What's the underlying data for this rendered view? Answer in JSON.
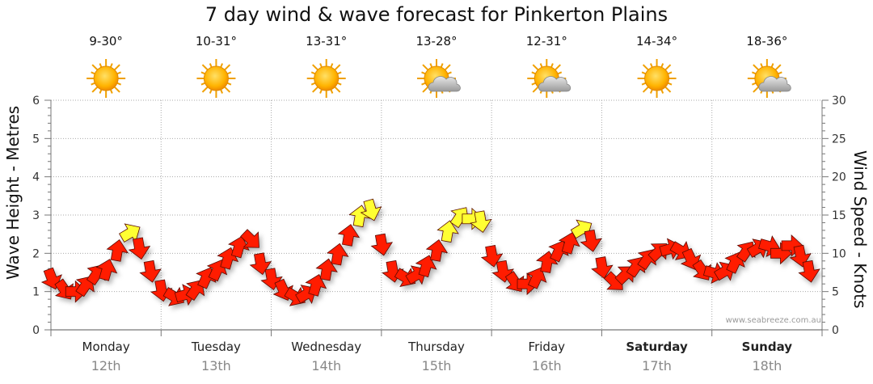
{
  "chart_data": {
    "type": "line",
    "title": "7 day wind & wave forecast for Pinkerton Plains",
    "ylabel": "Wave Height - Metres",
    "y2label": "Wind Speed - Knots",
    "ylim": [
      0,
      6
    ],
    "y2lim": [
      0,
      30
    ],
    "y_ticks": [
      "0",
      "1",
      "2",
      "3",
      "4",
      "5",
      "6"
    ],
    "y2_ticks": [
      "0",
      "5",
      "10",
      "15",
      "20",
      "25",
      "30"
    ],
    "days": [
      {
        "name": "Monday",
        "date": "12th",
        "temp": "9-30°",
        "icon": "sun-icon",
        "bold": false
      },
      {
        "name": "Tuesday",
        "date": "13th",
        "temp": "10-31°",
        "icon": "sun-icon",
        "bold": false
      },
      {
        "name": "Wednesday",
        "date": "14th",
        "temp": "13-31°",
        "icon": "sun-icon",
        "bold": false
      },
      {
        "name": "Thursday",
        "date": "15th",
        "temp": "13-28°",
        "icon": "sun-cloud-icon",
        "bold": false
      },
      {
        "name": "Friday",
        "date": "16th",
        "temp": "12-31°",
        "icon": "sun-cloud-icon",
        "bold": false
      },
      {
        "name": "Saturday",
        "date": "17th",
        "temp": "14-34°",
        "icon": "sun-icon",
        "bold": true
      },
      {
        "name": "Sunday",
        "date": "18th",
        "temp": "18-36°",
        "icon": "sun-cloud-icon",
        "bold": true
      }
    ],
    "wind_x_days": [
      0.0,
      0.11,
      0.2,
      0.3,
      0.4,
      0.5,
      0.6,
      0.7,
      0.8,
      0.9,
      1.0,
      1.1,
      1.2,
      1.3,
      1.4,
      1.5,
      1.6,
      1.7,
      1.8,
      1.9,
      2.0,
      2.1,
      2.2,
      2.3,
      2.4,
      2.5,
      2.6,
      2.7,
      2.8,
      2.9,
      3.0,
      3.1,
      3.2,
      3.3,
      3.4,
      3.5,
      3.6,
      3.7,
      3.8,
      3.9,
      4.0,
      4.1,
      4.2,
      4.3,
      4.4,
      4.5,
      4.6,
      4.7,
      4.8,
      4.9,
      5.0,
      5.1,
      5.2,
      5.3,
      5.4,
      5.5,
      5.6,
      5.7,
      5.8,
      5.9,
      6.0,
      6.1,
      6.2,
      6.3,
      6.4,
      6.5,
      6.6,
      6.7,
      6.8,
      6.88
    ],
    "wind_knots": [
      7,
      5.5,
      5,
      5.5,
      7,
      7.5,
      10,
      12.5,
      11,
      8,
      5.5,
      4.5,
      4.5,
      5,
      6.5,
      7.5,
      9,
      10.5,
      12,
      9,
      7,
      5.5,
      4.5,
      4.5,
      5.5,
      7.5,
      9.5,
      12,
      14.5,
      16,
      11.5,
      8,
      7,
      7,
      8,
      10,
      12.5,
      14.5,
      14.5,
      14.5,
      10,
      8,
      6.5,
      6,
      6.5,
      8.5,
      10,
      11,
      13,
      12,
      8.5,
      6.5,
      7,
      8,
      9,
      10,
      10.5,
      10.5,
      9.5,
      8,
      7.5,
      7.5,
      8.5,
      10,
      10.5,
      11,
      10,
      11,
      10,
      8
    ],
    "wind_highlight_knots": 12.5,
    "watermark": "www.seabreeze.com.au"
  }
}
